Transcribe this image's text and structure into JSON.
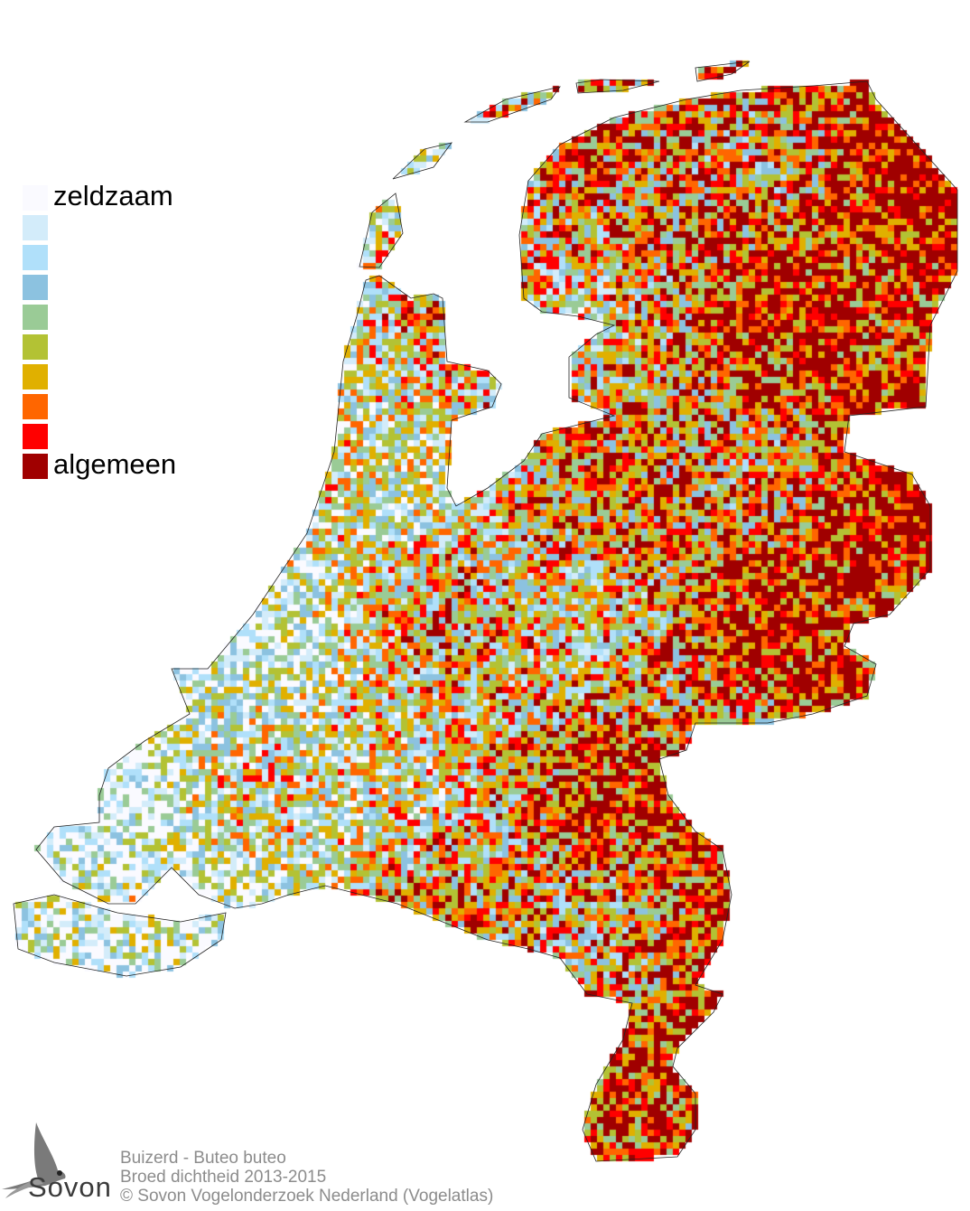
{
  "legend": {
    "items": [
      {
        "label": "zeldzaam",
        "color": "#fafaff"
      },
      {
        "label": "",
        "color": "#d3ecfa"
      },
      {
        "label": "",
        "color": "#b0e0fa"
      },
      {
        "label": "",
        "color": "#8cc2e0"
      },
      {
        "label": "",
        "color": "#9acb96"
      },
      {
        "label": "",
        "color": "#b3c234"
      },
      {
        "label": "",
        "color": "#e0b000"
      },
      {
        "label": "",
        "color": "#ff6600"
      },
      {
        "label": "",
        "color": "#ff0000"
      },
      {
        "label": "algemeen",
        "color": "#a00000"
      }
    ]
  },
  "credits": {
    "species": "Buizerd - Buteo buteo",
    "subtitle": "Broed dichtheid 2013-2015",
    "copyright": "© Sovon Vogelonderzoek Nederland (Vogelatlas)"
  },
  "logo": {
    "text": "Sovon",
    "icon": "swallow-icon"
  }
}
